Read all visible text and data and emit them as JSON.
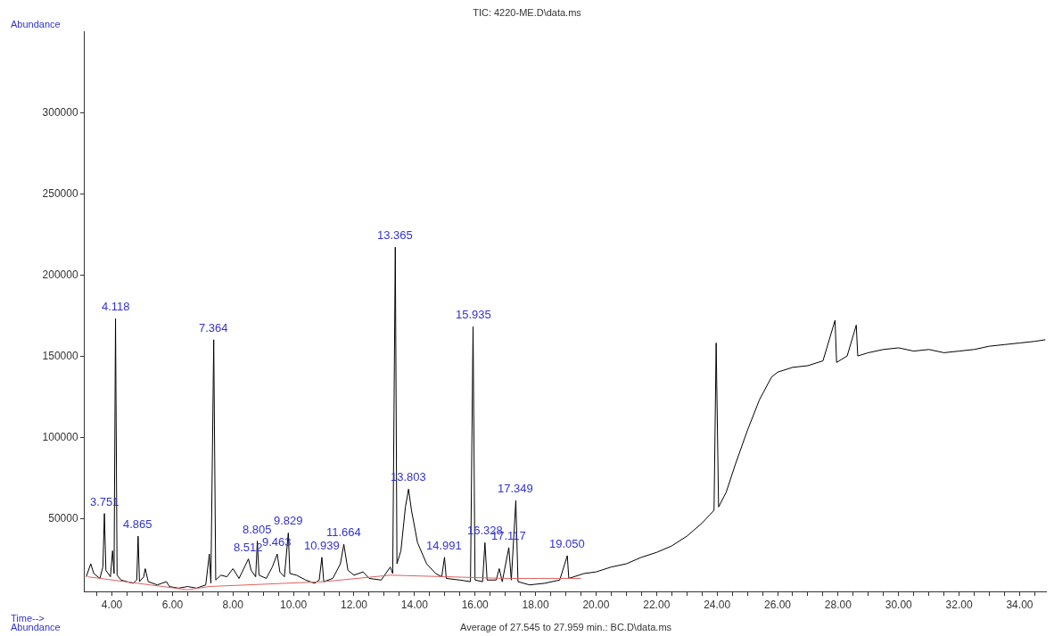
{
  "chart_data": {
    "type": "line",
    "title": "TIC: 4220-ME.D\\data.ms",
    "xlabel": "Time-->",
    "ylabel": "Abundance",
    "xlim": [
      3.1,
      34.9
    ],
    "ylim": [
      5000,
      350000
    ],
    "xticks": [
      {
        "value": 3.5,
        "label": null
      },
      {
        "value": 4,
        "label": "4.00"
      },
      {
        "value": 4.5,
        "label": null
      },
      {
        "value": 5,
        "label": null
      },
      {
        "value": 5.5,
        "label": null
      },
      {
        "value": 6,
        "label": "6.00"
      },
      {
        "value": 6.5,
        "label": null
      },
      {
        "value": 7,
        "label": null
      },
      {
        "value": 7.5,
        "label": null
      },
      {
        "value": 8,
        "label": "8.00"
      },
      {
        "value": 8.5,
        "label": null
      },
      {
        "value": 9,
        "label": null
      },
      {
        "value": 9.5,
        "label": null
      },
      {
        "value": 10,
        "label": "10.00"
      },
      {
        "value": 10.5,
        "label": null
      },
      {
        "value": 11,
        "label": null
      },
      {
        "value": 11.5,
        "label": null
      },
      {
        "value": 12,
        "label": "12.00"
      },
      {
        "value": 12.5,
        "label": null
      },
      {
        "value": 13,
        "label": null
      },
      {
        "value": 13.5,
        "label": null
      },
      {
        "value": 14,
        "label": "14.00"
      },
      {
        "value": 14.5,
        "label": null
      },
      {
        "value": 15,
        "label": null
      },
      {
        "value": 15.5,
        "label": null
      },
      {
        "value": 16,
        "label": "16.00"
      },
      {
        "value": 16.5,
        "label": null
      },
      {
        "value": 17,
        "label": null
      },
      {
        "value": 17.5,
        "label": null
      },
      {
        "value": 18,
        "label": "18.00"
      },
      {
        "value": 18.5,
        "label": null
      },
      {
        "value": 19,
        "label": null
      },
      {
        "value": 19.5,
        "label": null
      },
      {
        "value": 20,
        "label": "20.00"
      },
      {
        "value": 20.5,
        "label": null
      },
      {
        "value": 21,
        "label": null
      },
      {
        "value": 21.5,
        "label": null
      },
      {
        "value": 22,
        "label": "22.00"
      },
      {
        "value": 22.5,
        "label": null
      },
      {
        "value": 23,
        "label": null
      },
      {
        "value": 23.5,
        "label": null
      },
      {
        "value": 24,
        "label": "24.00"
      },
      {
        "value": 24.5,
        "label": null
      },
      {
        "value": 25,
        "label": null
      },
      {
        "value": 25.5,
        "label": null
      },
      {
        "value": 26,
        "label": "26.00"
      },
      {
        "value": 26.5,
        "label": null
      },
      {
        "value": 27,
        "label": null
      },
      {
        "value": 27.5,
        "label": null
      },
      {
        "value": 28,
        "label": "28.00"
      },
      {
        "value": 28.5,
        "label": null
      },
      {
        "value": 29,
        "label": null
      },
      {
        "value": 29.5,
        "label": null
      },
      {
        "value": 30,
        "label": "30.00"
      },
      {
        "value": 30.5,
        "label": null
      },
      {
        "value": 31,
        "label": null
      },
      {
        "value": 31.5,
        "label": null
      },
      {
        "value": 32,
        "label": "32.00"
      },
      {
        "value": 32.5,
        "label": null
      },
      {
        "value": 33,
        "label": null
      },
      {
        "value": 33.5,
        "label": null
      },
      {
        "value": 34,
        "label": "34.00"
      },
      {
        "value": 34.5,
        "label": null
      }
    ],
    "yticks": [
      50000,
      100000,
      150000,
      200000,
      250000,
      300000
    ],
    "series": [
      {
        "color": "#000000",
        "x": [
          3.15,
          3.3,
          3.4,
          3.6,
          3.7,
          3.751,
          3.8,
          3.95,
          4.02,
          4.07,
          4.118,
          4.17,
          4.3,
          4.5,
          4.7,
          4.82,
          4.865,
          4.91,
          5.05,
          5.1,
          5.2,
          5.5,
          5.8,
          5.9,
          6.2,
          6.5,
          6.8,
          7.1,
          7.22,
          7.27,
          7.364,
          7.43,
          7.6,
          7.8,
          8.0,
          8.2,
          8.512,
          8.6,
          8.75,
          8.805,
          8.86,
          9.1,
          9.3,
          9.463,
          9.55,
          9.7,
          9.829,
          9.88,
          10.1,
          10.4,
          10.7,
          10.85,
          10.939,
          11.0,
          11.3,
          11.55,
          11.664,
          11.8,
          12.0,
          12.3,
          12.5,
          12.9,
          13.2,
          13.28,
          13.365,
          13.42,
          13.55,
          13.7,
          13.803,
          13.9,
          14.1,
          14.4,
          14.7,
          14.9,
          14.991,
          15.05,
          15.5,
          15.85,
          15.935,
          16.0,
          16.25,
          16.328,
          16.4,
          16.7,
          16.8,
          16.9,
          17.117,
          17.2,
          17.349,
          17.42,
          17.8,
          18.3,
          18.8,
          19.05,
          19.1,
          19.6,
          20.0,
          20.5,
          21.0,
          21.5,
          22.0,
          22.5,
          23.0,
          23.5,
          23.9,
          23.97,
          24.05,
          24.3,
          24.6,
          25.0,
          25.4,
          25.8,
          26.0,
          26.5,
          27.0,
          27.5,
          27.9,
          27.95,
          28.3,
          28.6,
          28.65,
          29.0,
          29.5,
          30.0,
          30.5,
          31.0,
          31.5,
          32.0,
          32.5,
          33.0,
          33.5,
          34.0,
          34.5,
          34.85
        ],
        "values": [
          14000,
          22000,
          16000,
          13000,
          20000,
          53000,
          18000,
          14000,
          30000,
          16000,
          173000,
          15000,
          12000,
          11000,
          10000,
          12000,
          39000,
          11000,
          14000,
          19000,
          11000,
          9000,
          11000,
          8000,
          7000,
          8000,
          7000,
          9000,
          28000,
          10000,
          160000,
          12000,
          15000,
          14000,
          19000,
          13000,
          25000,
          18000,
          14000,
          36000,
          15000,
          13000,
          20000,
          28000,
          17000,
          14000,
          41000,
          16000,
          15000,
          12000,
          10000,
          12000,
          26000,
          11000,
          13000,
          22000,
          34000,
          18000,
          15000,
          17000,
          13000,
          12000,
          20000,
          16000,
          217000,
          22000,
          30000,
          57000,
          68000,
          55000,
          35000,
          22000,
          16000,
          14000,
          26000,
          13000,
          12000,
          11000,
          168000,
          12000,
          11000,
          35000,
          12000,
          12000,
          19000,
          11000,
          32000,
          12000,
          61000,
          11000,
          9000,
          10000,
          12000,
          27000,
          13000,
          16000,
          17000,
          20000,
          22000,
          26000,
          29000,
          33000,
          39000,
          47000,
          55000,
          158000,
          57000,
          66000,
          83000,
          104000,
          123000,
          137000,
          140000,
          143000,
          144000,
          147000,
          172000,
          146000,
          150000,
          169000,
          150000,
          152000,
          154000,
          155000,
          153000,
          154000,
          152000,
          153000,
          154000,
          156000,
          157000,
          158000,
          159000,
          160000
        ]
      },
      {
        "color": "#e06060",
        "x": [
          3.2,
          6.5,
          7.2,
          11.0,
          13.2,
          17.0,
          19.5
        ],
        "values": [
          14000,
          6000,
          8000,
          11000,
          15000,
          13000,
          13000
        ]
      }
    ],
    "annotations": [
      "Average of 27.545 to 27.959 min.: BC.D\\data.ms",
      "Abundance",
      {
        "text": "3.751",
        "x": 3.751,
        "y": 53000
      },
      {
        "text": "4.118",
        "x": 4.118,
        "y": 173000
      },
      {
        "text": "4.865",
        "x": 4.865,
        "y": 39000
      },
      {
        "text": "7.364",
        "x": 7.364,
        "y": 160000
      },
      {
        "text": "8.512",
        "x": 8.512,
        "y": 25000
      },
      {
        "text": "8.805",
        "x": 8.805,
        "y": 36000
      },
      {
        "text": "9.463",
        "x": 9.463,
        "y": 28000
      },
      {
        "text": "9.829",
        "x": 9.829,
        "y": 41000
      },
      {
        "text": "10.939",
        "x": 10.939,
        "y": 26000
      },
      {
        "text": "11.664",
        "x": 11.664,
        "y": 34000
      },
      {
        "text": "13.365",
        "x": 13.365,
        "y": 217000
      },
      {
        "text": "13.803",
        "x": 13.803,
        "y": 68000
      },
      {
        "text": "14.991",
        "x": 14.991,
        "y": 26000
      },
      {
        "text": "15.935",
        "x": 15.935,
        "y": 168000
      },
      {
        "text": "16.328",
        "x": 16.328,
        "y": 35000
      },
      {
        "text": "17.117",
        "x": 17.117,
        "y": 32000
      },
      {
        "text": "17.349",
        "x": 17.349,
        "y": 61000
      },
      {
        "text": "19.050",
        "x": 19.05,
        "y": 27000
      }
    ]
  }
}
